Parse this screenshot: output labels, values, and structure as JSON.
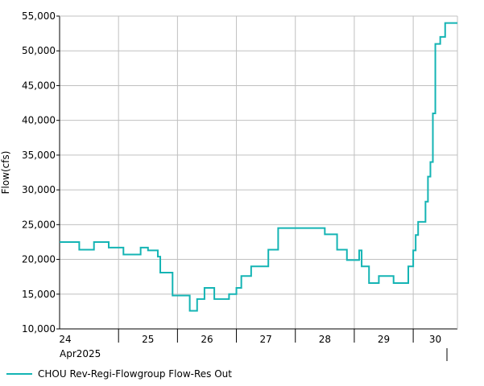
{
  "chart_data": {
    "type": "line",
    "step": true,
    "title": "",
    "xlabel": "",
    "ylabel": "Flow(cfs)",
    "ylim": [
      10000,
      55000
    ],
    "yticks": [
      10000,
      15000,
      20000,
      25000,
      30000,
      35000,
      40000,
      45000,
      50000,
      55000
    ],
    "ytick_labels": [
      "10,000",
      "15,000",
      "20,000",
      "25,000",
      "30,000",
      "35,000",
      "40,000",
      "45,000",
      "50,000",
      "55,000"
    ],
    "xlim": [
      "2025-04-24 00:00",
      "2025-04-30 18:00"
    ],
    "xticks": [
      "24",
      "25",
      "26",
      "27",
      "28",
      "29",
      "30"
    ],
    "x_sublabel": "Apr2025",
    "grid": true,
    "legend_position": "bottom-left",
    "color": "#14b4b4",
    "series": [
      {
        "name": "CHOU Rev-Regi-Flowgroup Flow-Res Out",
        "x": [
          "2025-04-24 00:00",
          "2025-04-24 08:00",
          "2025-04-24 14:00",
          "2025-04-24 20:00",
          "2025-04-25 02:00",
          "2025-04-25 09:00",
          "2025-04-25 12:00",
          "2025-04-25 16:00",
          "2025-04-25 17:00",
          "2025-04-25 18:00",
          "2025-04-25 22:00",
          "2025-04-26 05:00",
          "2025-04-26 06:00",
          "2025-04-26 08:00",
          "2025-04-26 11:00",
          "2025-04-26 15:00",
          "2025-04-26 19:00",
          "2025-04-26 21:00",
          "2025-04-27 00:00",
          "2025-04-27 02:00",
          "2025-04-27 06:00",
          "2025-04-27 08:00",
          "2025-04-27 13:00",
          "2025-04-27 17:00",
          "2025-04-28 04:00",
          "2025-04-28 12:00",
          "2025-04-28 17:00",
          "2025-04-28 21:00",
          "2025-04-29 02:00",
          "2025-04-29 03:00",
          "2025-04-29 06:00",
          "2025-04-29 10:00",
          "2025-04-29 16:00",
          "2025-04-29 18:00",
          "2025-04-29 22:00",
          "2025-04-30 00:00",
          "2025-04-30 01:00",
          "2025-04-30 02:00",
          "2025-04-30 05:00",
          "2025-04-30 06:00",
          "2025-04-30 07:00",
          "2025-04-30 08:00",
          "2025-04-30 09:00",
          "2025-04-30 11:00",
          "2025-04-30 13:00",
          "2025-04-30 18:00"
        ],
        "values": [
          22500,
          21400,
          22500,
          21700,
          20700,
          21700,
          21300,
          20400,
          18100,
          18100,
          14800,
          12600,
          12600,
          14300,
          15900,
          14300,
          14300,
          15000,
          15900,
          17600,
          19000,
          19000,
          21400,
          24500,
          24500,
          23600,
          21400,
          19900,
          21300,
          19000,
          16600,
          17600,
          16600,
          16600,
          19000,
          21300,
          23500,
          25400,
          28300,
          31900,
          34000,
          41000,
          51000,
          52000,
          54000,
          54000
        ]
      }
    ]
  },
  "legend": {
    "label": "CHOU Rev-Regi-Flowgroup Flow-Res Out"
  }
}
